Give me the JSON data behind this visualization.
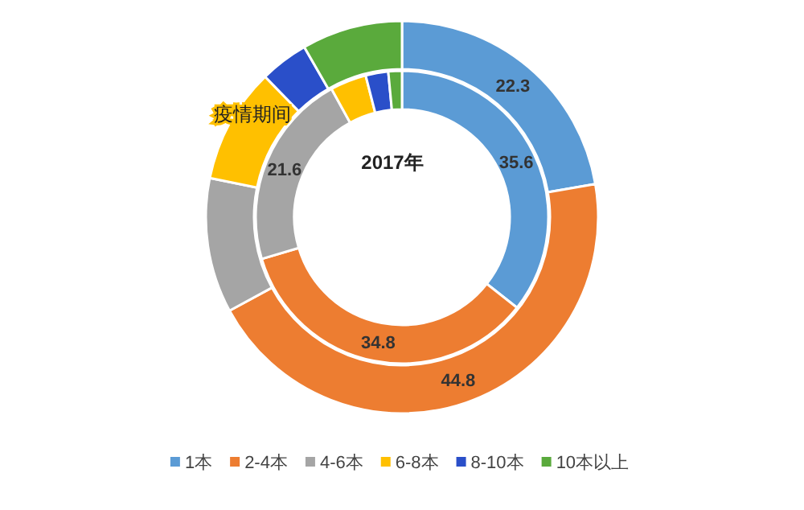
{
  "chart_data": {
    "type": "donut",
    "categories": [
      "1本",
      "2-4本",
      "4-6本",
      "6-8本",
      "8-10本",
      "10本以上"
    ],
    "colors": [
      "#5b9bd5",
      "#ed7d31",
      "#a5a5a5",
      "#ffc000",
      "#2a4fc9",
      "#5aaa3c"
    ],
    "series": [
      {
        "name": "疫情期间",
        "values": [
          22.3,
          44.8,
          11.1,
          9.5,
          4,
          8.3
        ],
        "value_labels": [
          "22.3",
          "44.8",
          null,
          null,
          null,
          null
        ]
      },
      {
        "name": "2017年",
        "values": [
          35.6,
          34.8,
          21.6,
          4,
          2.5,
          1.5
        ],
        "value_labels": [
          "35.6",
          "34.8",
          "21.6",
          null,
          null,
          null
        ]
      }
    ],
    "legend": "bottom"
  }
}
